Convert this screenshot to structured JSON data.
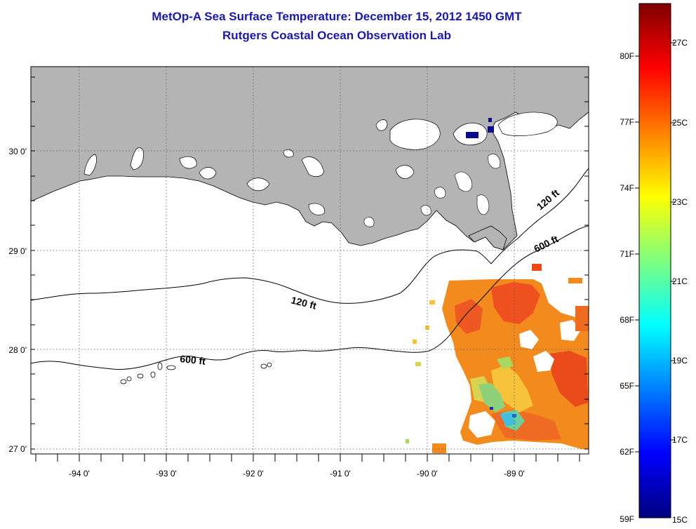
{
  "title": {
    "line1": "MetOp-A Sea Surface Temperature:  December 15, 2012 1450 GMT",
    "line2": "Rutgers Coastal Ocean Observation Lab"
  },
  "map": {
    "latitude_labels": [
      "30 0'",
      "29 0'",
      "28 0'",
      "27 0'"
    ],
    "longitude_labels": [
      "-94 0'",
      "-93 0'",
      "-92 0'",
      "-91 0'",
      "-90 0'",
      "-89 0'"
    ],
    "contour_labels": [
      "120 ft",
      "600 ft",
      "120 ft",
      "600 ft"
    ],
    "land_color": "#b4b4b4",
    "contour_color": "#000000"
  },
  "colorbar": {
    "fahrenheit_labels": [
      "80F",
      "77F",
      "74F",
      "71F",
      "68F",
      "65F",
      "62F",
      "59F"
    ],
    "celsius_labels": [
      "27C",
      "25C",
      "23C",
      "21C",
      "19C",
      "17C",
      "15C"
    ],
    "colors": [
      "#00007f",
      "#0000ff",
      "#007fff",
      "#00ffff",
      "#7fff7f",
      "#ffff00",
      "#ff7f00",
      "#ff0000",
      "#7f0000"
    ]
  },
  "chart_data": {
    "type": "heatmap",
    "title": "MetOp-A Sea Surface Temperature:  December 15, 2012 1450 GMT",
    "subtitle": "Rutgers Coastal Ocean Observation Lab",
    "xlabel": "",
    "ylabel": "",
    "xlim": [
      -94.5,
      -88.2
    ],
    "ylim": [
      26.95,
      30.85
    ],
    "colorbar_range_F": [
      59,
      82
    ],
    "colorbar_range_C": [
      15,
      28
    ],
    "observed_temperature_range_C": [
      17,
      26
    ],
    "dominant_temperature_C": 25
  }
}
